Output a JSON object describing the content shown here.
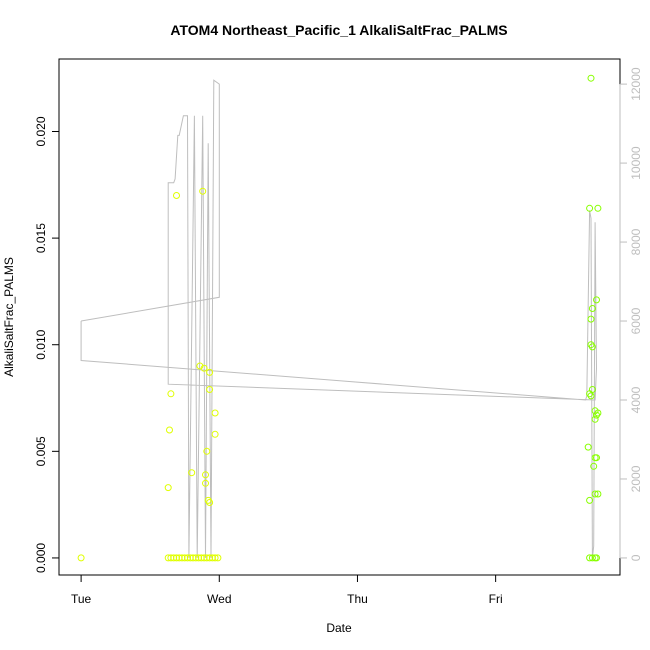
{
  "chart_data": {
    "type": "scatter",
    "title": "ATOM4 Northeast_Pacific_1 AlkaliSaltFrac_PALMS",
    "xlabel": "Date",
    "ylabel": "AlkaliSaltFrac_PALMS",
    "x_ticks": [
      {
        "label": "Tue",
        "value": 0
      },
      {
        "label": "Wed",
        "value": 1
      },
      {
        "label": "Thu",
        "value": 2
      },
      {
        "label": "Fri",
        "value": 3
      }
    ],
    "y_ticks": [
      "0.000",
      "0.005",
      "0.010",
      "0.015",
      "0.020"
    ],
    "y_tick_values": [
      0,
      0.005,
      0.01,
      0.015,
      0.02
    ],
    "y2_ticks": [
      "0",
      "2000",
      "4000",
      "6000",
      "8000",
      "10000",
      "12000"
    ],
    "y2_tick_values": [
      0,
      2000,
      4000,
      6000,
      8000,
      10000,
      12000
    ],
    "xlim": [
      -0.16,
      3.9
    ],
    "ylim": [
      -0.0008,
      0.0234
    ],
    "y2lim": [
      -432,
      12636
    ],
    "colors": {
      "line": "#bebebe",
      "point_low": "#e0ff00",
      "point_high": "#88ff00",
      "axis": "#000000",
      "right_axis": "#bebebe"
    },
    "points": [
      [
        0.0,
        0.0
      ],
      [
        0.63,
        0.0033
      ],
      [
        0.64,
        0.006
      ],
      [
        0.65,
        0.0077
      ],
      [
        0.69,
        0.017
      ],
      [
        0.8,
        0.004
      ],
      [
        0.86,
        0.009
      ],
      [
        0.89,
        0.0089
      ],
      [
        0.88,
        0.0172
      ],
      [
        0.9,
        0.0039
      ],
      [
        0.9,
        0.0035
      ],
      [
        0.91,
        0.005
      ],
      [
        0.92,
        0.0027
      ],
      [
        0.93,
        0.0026
      ],
      [
        0.93,
        0.0087
      ],
      [
        0.93,
        0.0079
      ],
      [
        0.97,
        0.0068
      ],
      [
        0.97,
        0.0058
      ],
      [
        0.63,
        0.0
      ],
      [
        0.65,
        0.0
      ],
      [
        0.67,
        0.0
      ],
      [
        0.69,
        0.0
      ],
      [
        0.71,
        0.0
      ],
      [
        0.73,
        0.0
      ],
      [
        0.75,
        0.0
      ],
      [
        0.77,
        0.0
      ],
      [
        0.79,
        0.0
      ],
      [
        0.81,
        0.0
      ],
      [
        0.83,
        0.0
      ],
      [
        0.85,
        0.0
      ],
      [
        0.87,
        0.0
      ],
      [
        0.89,
        0.0
      ],
      [
        0.91,
        0.0
      ],
      [
        0.93,
        0.0
      ],
      [
        0.95,
        0.0
      ],
      [
        0.97,
        0.0
      ],
      [
        0.99,
        0.0
      ],
      [
        3.69,
        0.0225
      ],
      [
        3.68,
        0.0164
      ],
      [
        3.74,
        0.0164
      ],
      [
        3.7,
        0.0117
      ],
      [
        3.73,
        0.0121
      ],
      [
        3.69,
        0.0112
      ],
      [
        3.69,
        0.01
      ],
      [
        3.7,
        0.0099
      ],
      [
        3.68,
        0.0077
      ],
      [
        3.69,
        0.0076
      ],
      [
        3.7,
        0.0079
      ],
      [
        3.72,
        0.0069
      ],
      [
        3.73,
        0.0067
      ],
      [
        3.74,
        0.0068
      ],
      [
        3.72,
        0.0065
      ],
      [
        3.67,
        0.0052
      ],
      [
        3.72,
        0.0047
      ],
      [
        3.73,
        0.0047
      ],
      [
        3.71,
        0.0043
      ],
      [
        3.72,
        0.003
      ],
      [
        3.74,
        0.003
      ],
      [
        3.68,
        0.0027
      ],
      [
        3.7,
        0.0
      ],
      [
        3.68,
        0.0
      ],
      [
        3.72,
        0.0
      ],
      [
        3.73,
        0.0
      ]
    ],
    "line_series_y2": [
      [
        0.0,
        6000
      ],
      [
        0.0,
        5000
      ],
      [
        3.65,
        4000
      ],
      [
        3.66,
        4100
      ],
      [
        3.68,
        8800
      ],
      [
        3.69,
        8600
      ],
      [
        3.7,
        0
      ],
      [
        3.71,
        300
      ],
      [
        3.72,
        8500
      ],
      [
        3.73,
        4800
      ],
      [
        3.72,
        4000
      ],
      [
        0.63,
        4400
      ],
      [
        0.63,
        9500
      ],
      [
        0.67,
        9500
      ],
      [
        0.68,
        9600
      ],
      [
        0.7,
        10700
      ],
      [
        0.71,
        10700
      ],
      [
        0.74,
        11200
      ],
      [
        0.77,
        11200
      ],
      [
        0.78,
        0
      ],
      [
        0.82,
        11200
      ],
      [
        0.84,
        0
      ],
      [
        0.88,
        11200
      ],
      [
        0.9,
        0
      ],
      [
        0.92,
        10500
      ],
      [
        0.94,
        0
      ],
      [
        0.96,
        12100
      ],
      [
        1.0,
        12000
      ],
      [
        1.0,
        6600
      ],
      [
        0.0,
        6000
      ]
    ]
  }
}
